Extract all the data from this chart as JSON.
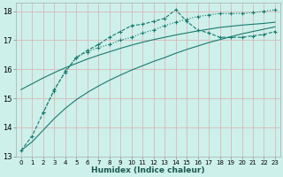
{
  "xlabel": "Humidex (Indice chaleur)",
  "bg_color": "#cdf0ea",
  "line_color": "#1a7a6e",
  "grid_color": "#d9b8b8",
  "xlim": [
    -0.5,
    23.5
  ],
  "ylim": [
    13,
    18.3
  ],
  "yticks": [
    13,
    14,
    15,
    16,
    17,
    18
  ],
  "xticks": [
    0,
    1,
    2,
    3,
    4,
    5,
    6,
    7,
    8,
    9,
    10,
    11,
    12,
    13,
    14,
    15,
    16,
    17,
    18,
    19,
    20,
    21,
    22,
    23
  ],
  "line1_x": [
    0,
    1,
    2,
    3,
    4,
    5,
    6,
    7,
    8,
    9,
    10,
    11,
    12,
    13,
    14,
    15,
    16,
    17,
    18,
    19,
    20,
    21,
    22,
    23
  ],
  "line1_y": [
    13.2,
    13.7,
    14.5,
    15.3,
    15.9,
    16.4,
    16.65,
    16.85,
    17.1,
    17.3,
    17.5,
    17.55,
    17.65,
    17.75,
    18.05,
    17.65,
    17.35,
    17.25,
    17.1,
    17.1,
    17.1,
    17.15,
    17.2,
    17.3
  ],
  "line2_x": [
    2,
    3,
    4,
    5,
    6,
    7,
    8,
    9,
    10,
    11,
    12,
    13,
    14,
    15,
    16,
    17,
    18,
    19,
    20,
    21,
    22,
    23
  ],
  "line2_y": [
    14.5,
    15.25,
    15.95,
    16.4,
    16.6,
    16.75,
    16.85,
    17.0,
    17.1,
    17.25,
    17.35,
    17.5,
    17.62,
    17.72,
    17.82,
    17.87,
    17.92,
    17.92,
    17.92,
    17.95,
    18.0,
    18.05
  ],
  "line3_x": [
    0,
    1,
    2,
    3,
    4,
    5,
    6,
    7,
    8,
    9,
    10,
    11,
    12,
    13,
    14,
    15,
    16,
    17,
    18,
    19,
    20,
    21,
    22,
    23
  ],
  "line3_y": [
    15.3,
    15.5,
    15.7,
    15.88,
    16.05,
    16.2,
    16.35,
    16.48,
    16.6,
    16.72,
    16.83,
    16.93,
    17.02,
    17.1,
    17.18,
    17.25,
    17.32,
    17.38,
    17.44,
    17.48,
    17.52,
    17.55,
    17.58,
    17.62
  ],
  "line4_x": [
    0,
    1,
    2,
    3,
    4,
    5,
    6,
    7,
    8,
    9,
    10,
    11,
    12,
    13,
    14,
    15,
    16,
    17,
    18,
    19,
    20,
    21,
    22,
    23
  ],
  "line4_y": [
    13.2,
    13.5,
    13.9,
    14.3,
    14.65,
    14.95,
    15.2,
    15.42,
    15.62,
    15.8,
    15.97,
    16.12,
    16.27,
    16.4,
    16.55,
    16.68,
    16.8,
    16.92,
    17.02,
    17.12,
    17.22,
    17.3,
    17.38,
    17.46
  ]
}
